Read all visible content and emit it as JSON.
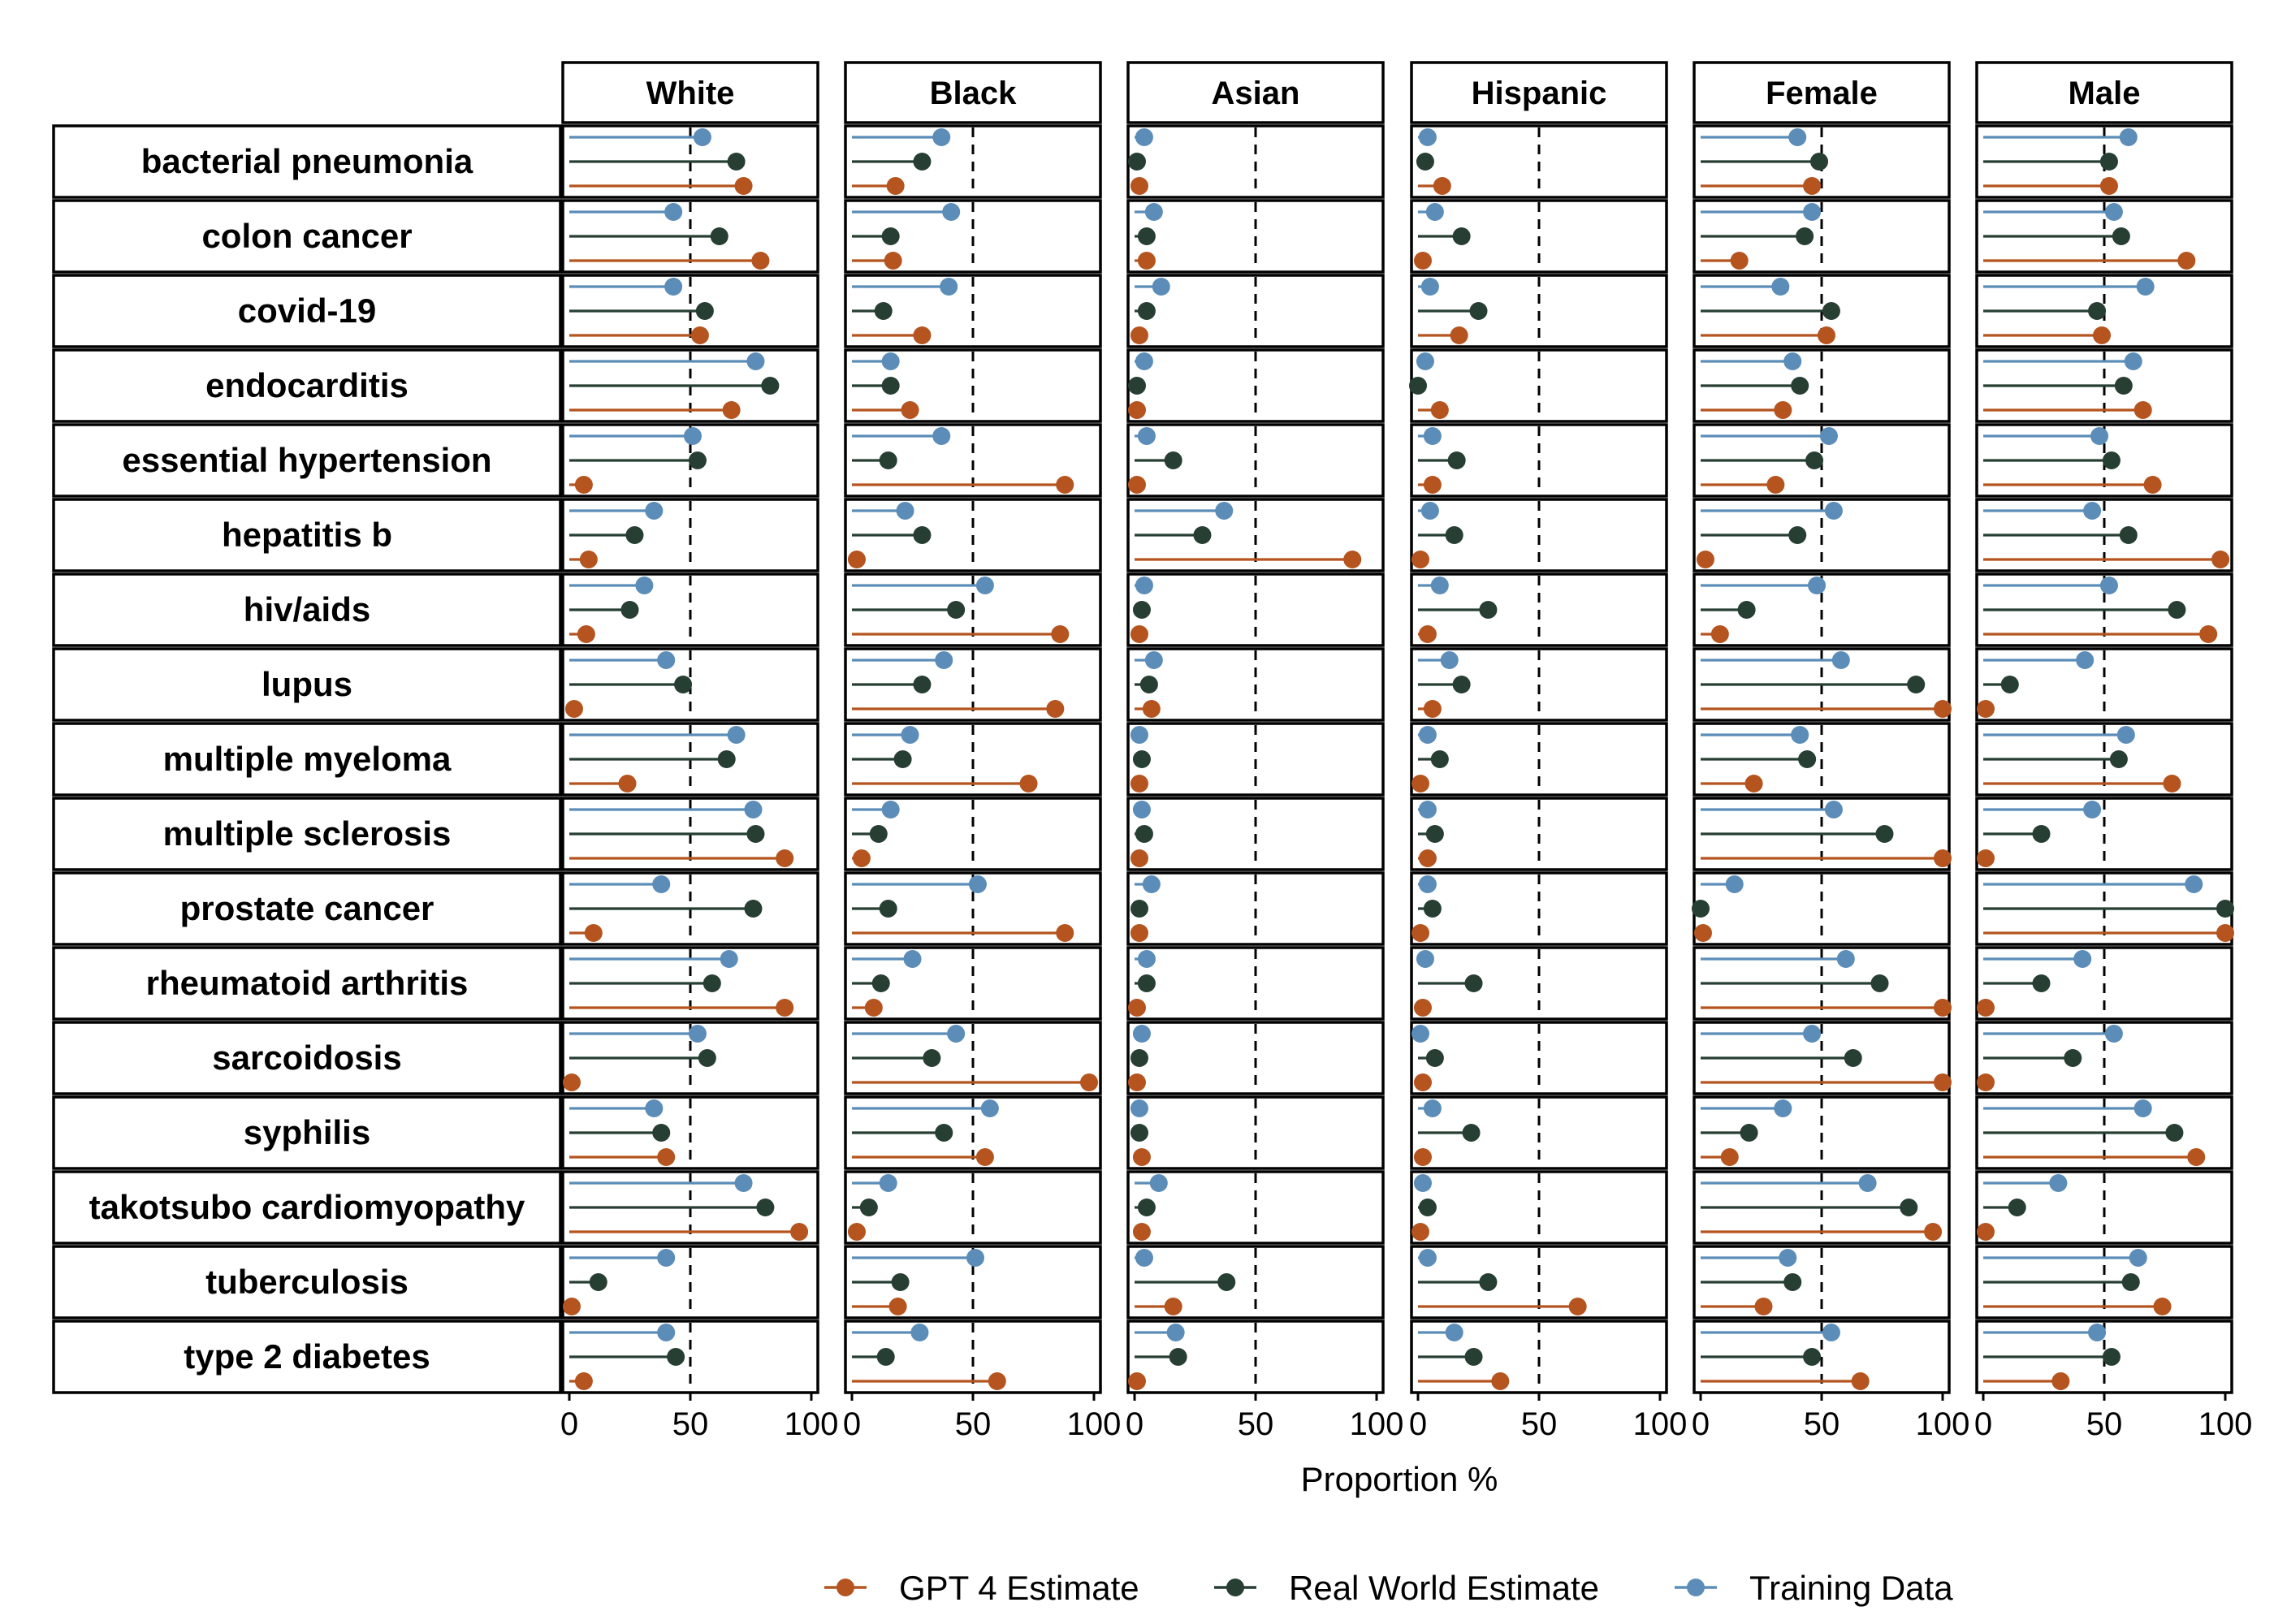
{
  "chart_data": {
    "type": "lollipop",
    "xlabel": "Proportion %",
    "xlim": [
      0,
      100
    ],
    "xticks": [
      0,
      50,
      100
    ],
    "reference_line": 50,
    "panels": [
      "White",
      "Black",
      "Asian",
      "Hispanic",
      "Female",
      "Male"
    ],
    "rows": [
      "bacterial pneumonia",
      "colon cancer",
      "covid-19",
      "endocarditis",
      "essential hypertension",
      "hepatitis b",
      "hiv/aids",
      "lupus",
      "multiple myeloma",
      "multiple sclerosis",
      "prostate cancer",
      "rheumatoid arthritis",
      "sarcoidosis",
      "syphilis",
      "takotsubo cardiomyopathy",
      "tuberculosis",
      "type 2 diabetes"
    ],
    "legend": {
      "placement": "bottom"
    },
    "series": [
      {
        "name": "GPT 4 Estimate",
        "color": "#B5541F",
        "values": [
          [
            72,
            18,
            2,
            10,
            46,
            52
          ],
          [
            79,
            17,
            5,
            2,
            16,
            84
          ],
          [
            54,
            29,
            2,
            17,
            52,
            49
          ],
          [
            67,
            24,
            1,
            9,
            34,
            66
          ],
          [
            6,
            88,
            1,
            6,
            31,
            70
          ],
          [
            8,
            2,
            90,
            1,
            2,
            98
          ],
          [
            7,
            86,
            2,
            4,
            8,
            93
          ],
          [
            2,
            84,
            7,
            6,
            100,
            1
          ],
          [
            24,
            73,
            2,
            1,
            22,
            78
          ],
          [
            89,
            4,
            2,
            4,
            100,
            1
          ],
          [
            10,
            88,
            2,
            1,
            1,
            100
          ],
          [
            89,
            9,
            1,
            2,
            100,
            1
          ],
          [
            1,
            98,
            1,
            2,
            100,
            1
          ],
          [
            40,
            55,
            3,
            2,
            12,
            88
          ],
          [
            95,
            2,
            3,
            1,
            96,
            1
          ],
          [
            1,
            19,
            16,
            66,
            26,
            74
          ],
          [
            6,
            60,
            1,
            34,
            66,
            32
          ]
        ]
      },
      {
        "name": "Real World Estimate",
        "color": "#273F33",
        "values": [
          [
            69,
            29,
            1,
            3,
            49,
            52
          ],
          [
            62,
            16,
            5,
            18,
            43,
            57
          ],
          [
            56,
            13,
            5,
            25,
            54,
            47
          ],
          [
            83,
            16,
            1,
            0,
            41,
            58
          ],
          [
            53,
            15,
            16,
            16,
            47,
            53
          ],
          [
            27,
            29,
            28,
            15,
            40,
            60
          ],
          [
            25,
            43,
            3,
            29,
            19,
            80
          ],
          [
            47,
            29,
            6,
            18,
            89,
            11
          ],
          [
            65,
            21,
            3,
            9,
            44,
            56
          ],
          [
            77,
            11,
            4,
            7,
            76,
            24
          ],
          [
            76,
            15,
            2,
            6,
            0,
            100
          ],
          [
            59,
            12,
            5,
            23,
            74,
            24
          ],
          [
            57,
            33,
            2,
            7,
            63,
            37
          ],
          [
            38,
            38,
            2,
            22,
            20,
            79
          ],
          [
            81,
            7,
            5,
            4,
            86,
            14
          ],
          [
            12,
            20,
            38,
            29,
            38,
            61
          ],
          [
            44,
            14,
            18,
            23,
            46,
            53
          ]
        ]
      },
      {
        "name": "Training Data",
        "color": "#5B8DB8",
        "values": [
          [
            55,
            37,
            4,
            4,
            40,
            60
          ],
          [
            43,
            41,
            8,
            7,
            46,
            54
          ],
          [
            43,
            40,
            11,
            5,
            33,
            67
          ],
          [
            77,
            16,
            4,
            3,
            38,
            62
          ],
          [
            51,
            37,
            5,
            6,
            53,
            48
          ],
          [
            35,
            22,
            37,
            5,
            55,
            45
          ],
          [
            31,
            55,
            4,
            9,
            48,
            52
          ],
          [
            40,
            38,
            8,
            13,
            58,
            42
          ],
          [
            69,
            24,
            2,
            4,
            41,
            59
          ],
          [
            76,
            16,
            3,
            4,
            55,
            45
          ],
          [
            38,
            52,
            7,
            4,
            14,
            87
          ],
          [
            66,
            25,
            5,
            3,
            60,
            41
          ],
          [
            53,
            43,
            3,
            1,
            46,
            54
          ],
          [
            35,
            57,
            2,
            6,
            34,
            66
          ],
          [
            72,
            15,
            10,
            2,
            69,
            31
          ],
          [
            40,
            51,
            4,
            4,
            36,
            64
          ],
          [
            40,
            28,
            17,
            15,
            54,
            47
          ]
        ]
      }
    ]
  }
}
